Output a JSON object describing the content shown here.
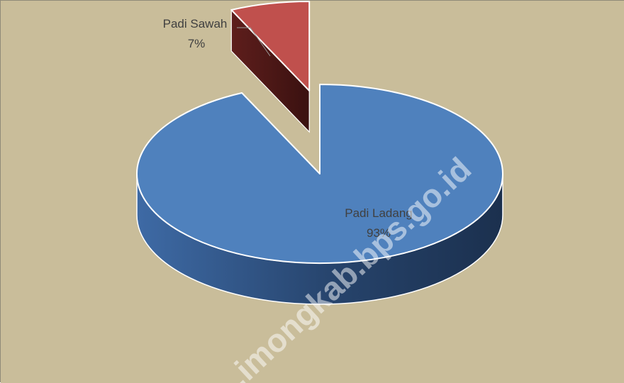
{
  "chart_data": {
    "type": "pie",
    "style": "3d-exploded",
    "categories": [
      "Padi Ladang",
      "Padi Sawah"
    ],
    "values": [
      93,
      7
    ],
    "labels": [
      {
        "name": "Padi Ladang",
        "percent": "93%"
      },
      {
        "name": "Padi Sawah",
        "percent": "7%"
      }
    ],
    "title": "",
    "legend": "none",
    "colors": {
      "background": "#C9BD9A",
      "padi_ladang": "#4F81BD",
      "padi_sawah": "#C0504D"
    }
  },
  "watermark": "..imongkab.bps.go.id"
}
